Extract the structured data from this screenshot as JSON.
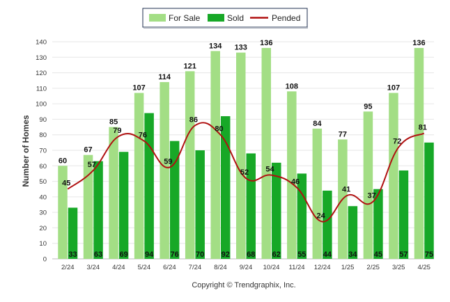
{
  "chart_data": {
    "type": "bar",
    "categories": [
      "2/24",
      "3/24",
      "4/24",
      "5/24",
      "6/24",
      "7/24",
      "8/24",
      "9/24",
      "10/24",
      "11/24",
      "12/24",
      "1/25",
      "2/25",
      "3/25",
      "4/25"
    ],
    "series": [
      {
        "name": "For Sale",
        "kind": "bar",
        "color": "#a3de85",
        "values": [
          60,
          67,
          85,
          107,
          114,
          121,
          134,
          133,
          136,
          108,
          84,
          77,
          95,
          107,
          136
        ]
      },
      {
        "name": "Sold",
        "kind": "bar",
        "color": "#17a827",
        "values": [
          33,
          63,
          69,
          94,
          76,
          70,
          92,
          68,
          62,
          55,
          44,
          34,
          45,
          57,
          75
        ]
      },
      {
        "name": "Pended",
        "kind": "line",
        "color": "#b01010",
        "values": [
          45,
          57,
          79,
          76,
          59,
          86,
          80,
          52,
          54,
          46,
          24,
          41,
          37,
          72,
          81
        ]
      }
    ],
    "ylabel": "Number of Homes",
    "xlabel": "",
    "ylim": [
      0,
      140
    ],
    "yticks": [
      0,
      10,
      20,
      30,
      40,
      50,
      60,
      70,
      80,
      90,
      100,
      110,
      120,
      130,
      140
    ],
    "grid": true,
    "legend": "top-center",
    "footer": "Copyright © Trendgraphix, Inc."
  }
}
